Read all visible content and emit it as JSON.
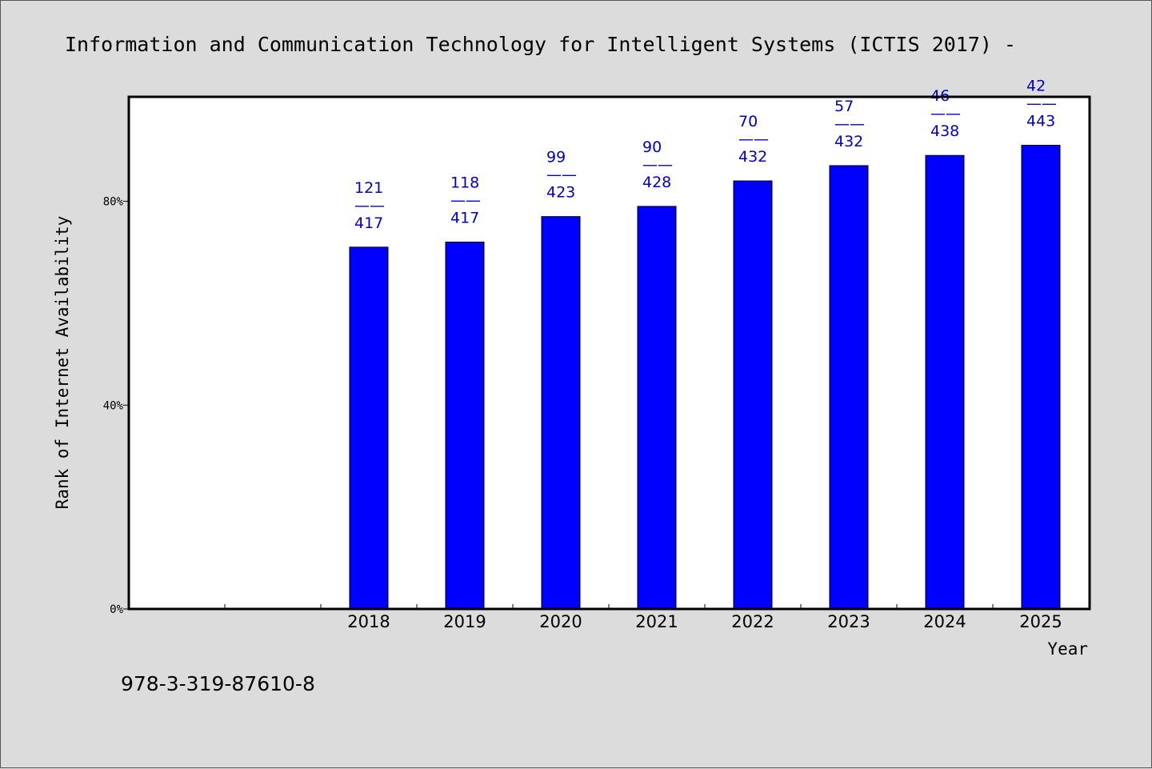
{
  "chart_data": {
    "type": "bar",
    "title": "Information and Communication Technology for Intelligent Systems (ICTIS 2017) -",
    "xlabel": "Year",
    "ylabel": "Rank of Internet Availability",
    "categories": [
      "",
      "",
      "2018",
      "2019",
      "2020",
      "2021",
      "2022",
      "2023",
      "2024",
      "2025"
    ],
    "values": [
      null,
      null,
      71,
      72,
      77,
      79,
      84,
      87,
      89,
      91
    ],
    "annotations": [
      null,
      null,
      {
        "top": "121",
        "sep": "——",
        "bottom": "417"
      },
      {
        "top": "118",
        "sep": "——",
        "bottom": "417"
      },
      {
        "top": "99",
        "sep": "——",
        "bottom": "423"
      },
      {
        "top": "90",
        "sep": "——",
        "bottom": "428"
      },
      {
        "top": "70",
        "sep": "——",
        "bottom": "432"
      },
      {
        "top": "57",
        "sep": "——",
        "bottom": "432"
      },
      {
        "top": "46",
        "sep": "——",
        "bottom": "438"
      },
      {
        "top": "42",
        "sep": "——",
        "bottom": "443"
      }
    ],
    "ylim": [
      0,
      100.5
    ],
    "yticks": [
      0,
      40,
      80
    ],
    "ytick_labels": [
      "0%",
      "40%",
      "80%"
    ],
    "grid": false,
    "legend": "none",
    "colors": {
      "bar": "#0000ff",
      "bar_edge": "#000000",
      "label": "#0000cc",
      "plot_bg": "#ffffff",
      "page_bg": "#dcdcdc"
    }
  },
  "footer": {
    "isbn": "978-3-319-87610-8"
  }
}
